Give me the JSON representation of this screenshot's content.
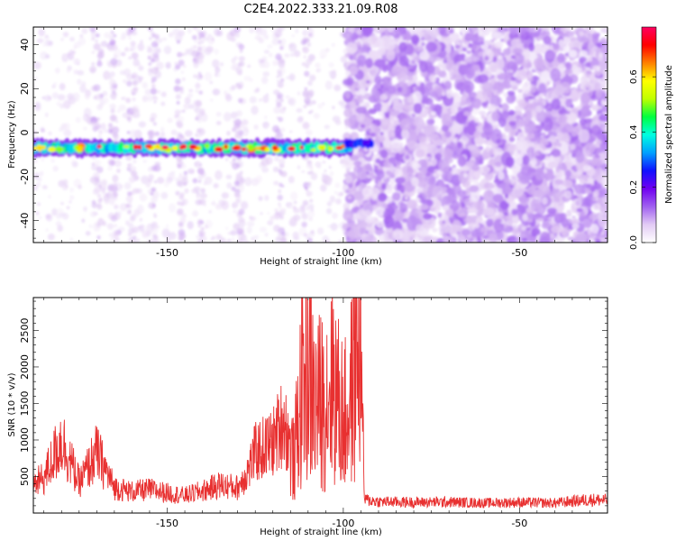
{
  "figure": {
    "title": "C2E4.2022.333.21.09.R08"
  },
  "chart_data": [
    {
      "type": "heatmap",
      "xlabel": "Height of straight line (km)",
      "ylabel": "Frequency (Hz)",
      "xlim": [
        -188,
        -25
      ],
      "ylim": [
        -50,
        48
      ],
      "xticks": [
        -150,
        -100,
        -50
      ],
      "yticks": [
        -40,
        -20,
        0,
        20,
        40
      ],
      "colorbar": {
        "label": "Normalized spectral amplitude",
        "range": [
          0.0,
          0.78
        ],
        "ticks": [
          0.0,
          0.2,
          0.4,
          0.6
        ],
        "colormap": [
          "#ffffff",
          "#e2cbf4",
          "#a060f0",
          "#7000f0",
          "#1010ff",
          "#00a0ff",
          "#00ffe0",
          "#00ff40",
          "#c0ff00",
          "#ffff00",
          "#ff8000",
          "#ff0000",
          "#ff0060"
        ]
      },
      "features": {
        "band_center_hz": -7,
        "band_half_width_hz": 4,
        "band_x_range": [
          -188,
          -98
        ],
        "transition_x": -99,
        "noise_region_x_range": [
          -99,
          -25
        ],
        "band_peak_amplitude": 0.78
      }
    },
    {
      "type": "line",
      "xlabel": "Height of straight line (km)",
      "ylabel": "SNR (10 * v/v)",
      "xlim": [
        -188,
        -25
      ],
      "ylim": [
        0,
        2950
      ],
      "xticks": [
        -150,
        -100,
        -50
      ],
      "yticks": [
        500,
        1000,
        1500,
        2000,
        2500
      ],
      "line_color": "#e83030",
      "series": [
        {
          "x": [
            -188,
            -185,
            -180,
            -175,
            -170,
            -165,
            -160,
            -155,
            -150,
            -145,
            -140,
            -135,
            -130,
            -127,
            -125,
            -120,
            -117,
            -114,
            -112,
            -111,
            -110,
            -108,
            -105,
            -103,
            -101,
            -99,
            -97,
            -96,
            -95,
            -94,
            -90,
            -80,
            -70,
            -60,
            -50,
            -40,
            -30,
            -25
          ],
          "y": [
            420,
            520,
            1100,
            450,
            900,
            380,
            320,
            350,
            300,
            260,
            330,
            420,
            380,
            640,
            900,
            1050,
            1400,
            800,
            1900,
            2300,
            2350,
            1700,
            1800,
            2200,
            1600,
            1500,
            2150,
            2920,
            2500,
            200,
            170,
            160,
            165,
            150,
            160,
            150,
            200,
            190
          ]
        }
      ]
    }
  ]
}
